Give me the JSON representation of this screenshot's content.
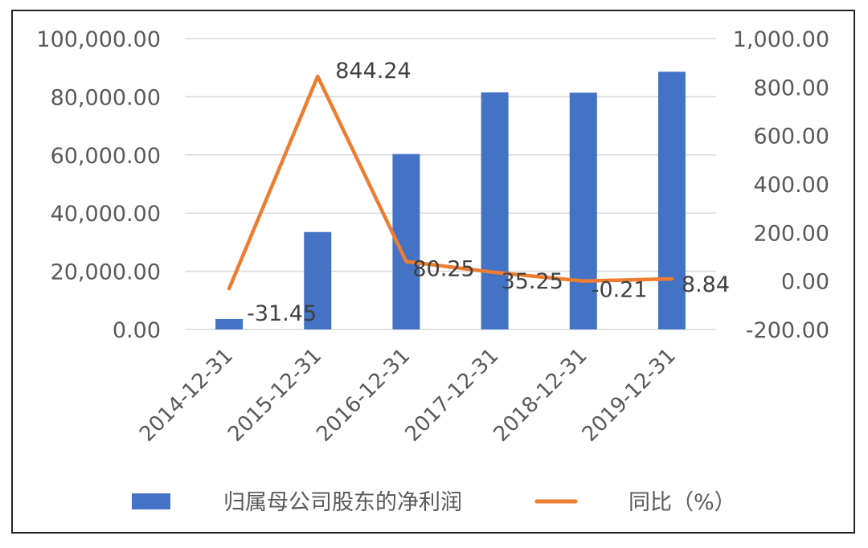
{
  "chart_data": {
    "type": "bar+line",
    "categories": [
      "2014-12-31",
      "2015-12-31",
      "2016-12-31",
      "2017-12-31",
      "2018-12-31",
      "2019-12-31"
    ],
    "series": [
      {
        "name": "归属母公司股东的净利润",
        "type": "bar",
        "axis": "left",
        "color": "#4472C4",
        "values": [
          3600,
          33500,
          60300,
          81500,
          81400,
          88600
        ]
      },
      {
        "name": "同比（%）",
        "type": "line",
        "axis": "right",
        "color": "#ED7D31",
        "values": [
          -31.45,
          844.24,
          80.25,
          35.25,
          -0.21,
          8.84
        ],
        "data_labels": [
          "-31.45",
          "844.24",
          "80.25",
          "35.25",
          "-0.21",
          "8.84"
        ]
      }
    ],
    "y_left": {
      "range": [
        0,
        100000
      ],
      "ticks": [
        0,
        20000,
        40000,
        60000,
        80000,
        100000
      ],
      "tick_labels": [
        "0.00",
        "20,000.00",
        "40,000.00",
        "60,000.00",
        "80,000.00",
        "100,000.00"
      ]
    },
    "y_right": {
      "range": [
        -200,
        1000
      ],
      "ticks": [
        -200,
        0,
        200,
        400,
        600,
        800,
        1000
      ],
      "tick_labels": [
        "-200.00",
        "0.00",
        "200.00",
        "400.00",
        "600.00",
        "800.00",
        "1,000.00"
      ]
    },
    "grid": true,
    "legend_position": "bottom",
    "gridline_color": "#D9D9D9"
  }
}
